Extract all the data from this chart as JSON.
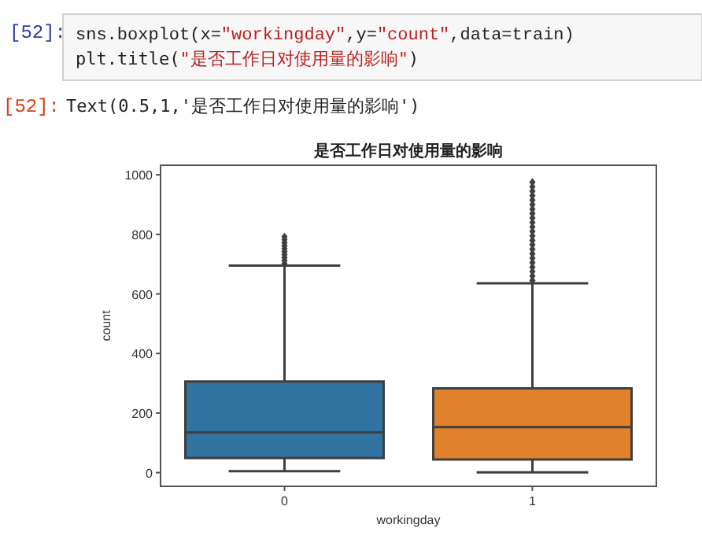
{
  "chart_data": {
    "type": "box",
    "title": "是否工作日对使用量的影响",
    "xlabel": "workingday",
    "ylabel": "count",
    "categories": [
      "0",
      "1"
    ],
    "colors": [
      "#3274a1",
      "#e1812c"
    ],
    "boxes": [
      {
        "low": 5,
        "q1": 49,
        "median": 135,
        "q3": 306,
        "high": 695,
        "outliers": [
          702,
          712,
          722,
          732,
          742,
          752,
          762,
          772,
          782,
          792
        ]
      },
      {
        "low": 1,
        "q1": 44,
        "median": 153,
        "q3": 283,
        "high": 636,
        "outliers": [
          645,
          660,
          675,
          690,
          705,
          720,
          735,
          750,
          765,
          780,
          795,
          810,
          825,
          840,
          855,
          870,
          885,
          900,
          915,
          930,
          945,
          960,
          975
        ]
      }
    ],
    "ylim": [
      -46,
      1032
    ],
    "yticks": [
      0,
      200,
      400,
      600,
      800,
      1000
    ],
    "marker": "diamond",
    "grid": false,
    "annotations": [
      "[52]:",
      "sns.boxplot(x=\"workingday\",y=\"count\",data=train)",
      "plt.title(\"是否工作日对使用量的影响\")",
      "[52]:",
      "Text(0.5,1,'是否工作日对使用量的影响')"
    ]
  }
}
